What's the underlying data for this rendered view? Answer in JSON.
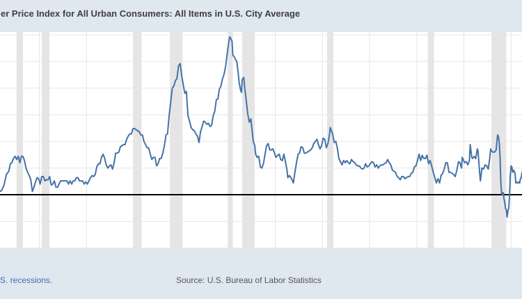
{
  "header": {
    "title": "er Price Index for All Urban Consumers: All Items in U.S. City Average",
    "bg_color": "#dfe7ef",
    "text_color": "#3f3f3f"
  },
  "footer": {
    "recessions_link": "S. recessions.",
    "link_color": "#3f6db5",
    "source": "Source: U.S. Bureau of Labor Statistics",
    "text_color": "#555555",
    "bg_color": "#dfe7ef"
  },
  "chart_data": {
    "type": "line",
    "title": "er Price Index for All Urban Consumers: All Items in U.S. City Average",
    "xlabel": "",
    "ylabel": "",
    "line_color": "#4572a7",
    "zero_line_color": "#000000",
    "grid_color": "#e6e6e6",
    "recession_band_color": "#e5e5e5",
    "tick_color": "#9aa4ae",
    "tick_label_color": "#555555",
    "xlim": [
      1955.82,
      2011.16
    ],
    "ylim": [
      -5.02,
      15.26
    ],
    "y_gridlines": [
      15,
      12.5,
      10,
      7.5,
      5,
      2.5,
      0,
      -2.5,
      -5
    ],
    "x_ticks": [
      1955,
      1960,
      1965,
      1970,
      1975,
      1980,
      1985,
      1990,
      1995,
      2000,
      2005,
      2010
    ],
    "recessions": [
      [
        1957.58,
        1958.25
      ],
      [
        1960.25,
        1961.08
      ],
      [
        1969.92,
        1970.83
      ],
      [
        1973.83,
        1975.17
      ],
      [
        1980.0,
        1980.5
      ],
      [
        1981.5,
        1982.83
      ],
      [
        1990.5,
        1991.17
      ],
      [
        2001.17,
        2001.83
      ],
      [
        2007.92,
        2009.5
      ]
    ],
    "points": [
      [
        1955.83,
        0.3
      ],
      [
        1956.0,
        0.4
      ],
      [
        1956.25,
        0.9
      ],
      [
        1956.5,
        1.9
      ],
      [
        1956.75,
        2.2
      ],
      [
        1956.92,
        2.9
      ],
      [
        1957.08,
        3.0
      ],
      [
        1957.25,
        3.4
      ],
      [
        1957.42,
        3.6
      ],
      [
        1957.58,
        3.3
      ],
      [
        1957.75,
        3.6
      ],
      [
        1957.92,
        3.0
      ],
      [
        1958.08,
        3.6
      ],
      [
        1958.25,
        3.6
      ],
      [
        1958.42,
        3.2
      ],
      [
        1958.58,
        2.5
      ],
      [
        1958.75,
        2.1
      ],
      [
        1958.92,
        1.8
      ],
      [
        1959.08,
        1.4
      ],
      [
        1959.25,
        0.3
      ],
      [
        1959.42,
        0.7
      ],
      [
        1959.58,
        1.2
      ],
      [
        1959.75,
        1.6
      ],
      [
        1959.92,
        1.5
      ],
      [
        1960.08,
        1.0
      ],
      [
        1960.25,
        1.7
      ],
      [
        1960.42,
        1.7
      ],
      [
        1960.58,
        1.3
      ],
      [
        1960.75,
        1.4
      ],
      [
        1960.92,
        1.4
      ],
      [
        1961.08,
        1.7
      ],
      [
        1961.25,
        0.9
      ],
      [
        1961.42,
        1.0
      ],
      [
        1961.58,
        1.3
      ],
      [
        1961.75,
        0.7
      ],
      [
        1961.92,
        0.7
      ],
      [
        1962.08,
        1.0
      ],
      [
        1962.25,
        1.3
      ],
      [
        1962.42,
        1.3
      ],
      [
        1962.58,
        1.3
      ],
      [
        1962.75,
        1.3
      ],
      [
        1962.92,
        1.3
      ],
      [
        1963.08,
        1.0
      ],
      [
        1963.25,
        1.3
      ],
      [
        1963.42,
        1.0
      ],
      [
        1963.58,
        1.3
      ],
      [
        1963.75,
        1.3
      ],
      [
        1963.92,
        1.6
      ],
      [
        1964.08,
        1.6
      ],
      [
        1964.25,
        1.3
      ],
      [
        1964.42,
        1.3
      ],
      [
        1964.58,
        1.3
      ],
      [
        1964.75,
        1.0
      ],
      [
        1964.92,
        1.2
      ],
      [
        1965.08,
        1.0
      ],
      [
        1965.25,
        1.3
      ],
      [
        1965.42,
        1.6
      ],
      [
        1965.58,
        1.8
      ],
      [
        1965.75,
        1.7
      ],
      [
        1965.92,
        1.9
      ],
      [
        1966.08,
        2.6
      ],
      [
        1966.25,
        2.9
      ],
      [
        1966.42,
        2.9
      ],
      [
        1966.58,
        3.5
      ],
      [
        1966.75,
        3.8
      ],
      [
        1966.92,
        3.4
      ],
      [
        1967.08,
        2.8
      ],
      [
        1967.25,
        2.5
      ],
      [
        1967.42,
        2.7
      ],
      [
        1967.58,
        2.8
      ],
      [
        1967.75,
        2.4
      ],
      [
        1967.92,
        3.0
      ],
      [
        1968.08,
        3.9
      ],
      [
        1968.25,
        3.9
      ],
      [
        1968.42,
        4.0
      ],
      [
        1968.58,
        4.5
      ],
      [
        1968.75,
        4.6
      ],
      [
        1968.92,
        4.7
      ],
      [
        1969.08,
        4.7
      ],
      [
        1969.25,
        5.2
      ],
      [
        1969.42,
        5.5
      ],
      [
        1969.58,
        5.7
      ],
      [
        1969.75,
        5.7
      ],
      [
        1969.92,
        6.2
      ],
      [
        1970.08,
        6.2
      ],
      [
        1970.25,
        6.1
      ],
      [
        1970.42,
        6.0
      ],
      [
        1970.58,
        5.9
      ],
      [
        1970.75,
        5.6
      ],
      [
        1970.92,
        5.6
      ],
      [
        1971.08,
        5.0
      ],
      [
        1971.25,
        4.7
      ],
      [
        1971.42,
        4.4
      ],
      [
        1971.58,
        4.4
      ],
      [
        1971.75,
        3.8
      ],
      [
        1971.92,
        3.3
      ],
      [
        1972.08,
        3.5
      ],
      [
        1972.25,
        3.5
      ],
      [
        1972.42,
        2.7
      ],
      [
        1972.58,
        2.9
      ],
      [
        1972.75,
        3.4
      ],
      [
        1972.92,
        3.4
      ],
      [
        1973.08,
        3.9
      ],
      [
        1973.25,
        4.6
      ],
      [
        1973.42,
        5.6
      ],
      [
        1973.58,
        5.7
      ],
      [
        1973.75,
        7.4
      ],
      [
        1973.92,
        8.7
      ],
      [
        1974.08,
        10.0
      ],
      [
        1974.25,
        10.2
      ],
      [
        1974.42,
        10.7
      ],
      [
        1974.58,
        10.9
      ],
      [
        1974.75,
        12.1
      ],
      [
        1974.92,
        12.3
      ],
      [
        1975.08,
        11.2
      ],
      [
        1975.25,
        10.3
      ],
      [
        1975.42,
        9.5
      ],
      [
        1975.58,
        9.7
      ],
      [
        1975.75,
        7.4
      ],
      [
        1975.92,
        6.9
      ],
      [
        1976.08,
        6.3
      ],
      [
        1976.25,
        6.1
      ],
      [
        1976.42,
        6.0
      ],
      [
        1976.58,
        5.7
      ],
      [
        1976.75,
        5.5
      ],
      [
        1976.92,
        4.9
      ],
      [
        1977.08,
        5.9
      ],
      [
        1977.25,
        6.4
      ],
      [
        1977.42,
        6.9
      ],
      [
        1977.58,
        6.8
      ],
      [
        1977.75,
        6.6
      ],
      [
        1977.92,
        6.7
      ],
      [
        1978.08,
        6.4
      ],
      [
        1978.25,
        6.5
      ],
      [
        1978.42,
        7.4
      ],
      [
        1978.58,
        7.8
      ],
      [
        1978.75,
        8.9
      ],
      [
        1978.92,
        9.0
      ],
      [
        1979.08,
        9.9
      ],
      [
        1979.25,
        10.2
      ],
      [
        1979.42,
        10.9
      ],
      [
        1979.58,
        11.3
      ],
      [
        1979.75,
        12.1
      ],
      [
        1979.92,
        13.3
      ],
      [
        1980.0,
        13.9
      ],
      [
        1980.17,
        14.8
      ],
      [
        1980.25,
        14.7
      ],
      [
        1980.42,
        14.4
      ],
      [
        1980.5,
        13.1
      ],
      [
        1980.67,
        12.9
      ],
      [
        1980.83,
        12.6
      ],
      [
        1980.92,
        12.5
      ],
      [
        1981.08,
        11.4
      ],
      [
        1981.17,
        10.5
      ],
      [
        1981.33,
        9.8
      ],
      [
        1981.42,
        9.6
      ],
      [
        1981.5,
        10.8
      ],
      [
        1981.67,
        11.0
      ],
      [
        1981.75,
        10.1
      ],
      [
        1981.92,
        8.9
      ],
      [
        1982.08,
        7.6
      ],
      [
        1982.25,
        6.8
      ],
      [
        1982.42,
        7.1
      ],
      [
        1982.5,
        6.4
      ],
      [
        1982.67,
        5.0
      ],
      [
        1982.83,
        4.6
      ],
      [
        1982.92,
        3.8
      ],
      [
        1983.08,
        3.5
      ],
      [
        1983.25,
        3.6
      ],
      [
        1983.42,
        2.6
      ],
      [
        1983.58,
        2.5
      ],
      [
        1983.75,
        2.9
      ],
      [
        1983.92,
        3.8
      ],
      [
        1984.08,
        4.6
      ],
      [
        1984.25,
        4.8
      ],
      [
        1984.42,
        4.2
      ],
      [
        1984.58,
        4.2
      ],
      [
        1984.75,
        4.3
      ],
      [
        1984.92,
        3.9
      ],
      [
        1985.08,
        3.5
      ],
      [
        1985.25,
        3.7
      ],
      [
        1985.42,
        3.8
      ],
      [
        1985.58,
        3.3
      ],
      [
        1985.75,
        3.2
      ],
      [
        1985.92,
        3.8
      ],
      [
        1986.08,
        3.1
      ],
      [
        1986.25,
        2.3
      ],
      [
        1986.33,
        1.6
      ],
      [
        1986.5,
        1.8
      ],
      [
        1986.67,
        1.6
      ],
      [
        1986.83,
        1.3
      ],
      [
        1986.92,
        1.1
      ],
      [
        1987.08,
        2.1
      ],
      [
        1987.25,
        3.0
      ],
      [
        1987.42,
        3.8
      ],
      [
        1987.58,
        3.9
      ],
      [
        1987.75,
        4.5
      ],
      [
        1987.92,
        4.4
      ],
      [
        1988.08,
        3.9
      ],
      [
        1988.25,
        3.9
      ],
      [
        1988.42,
        4.0
      ],
      [
        1988.58,
        4.1
      ],
      [
        1988.75,
        4.2
      ],
      [
        1988.92,
        4.4
      ],
      [
        1989.08,
        4.8
      ],
      [
        1989.25,
        5.0
      ],
      [
        1989.42,
        5.2
      ],
      [
        1989.58,
        4.7
      ],
      [
        1989.75,
        4.3
      ],
      [
        1989.92,
        4.6
      ],
      [
        1990.08,
        5.3
      ],
      [
        1990.25,
        5.2
      ],
      [
        1990.42,
        4.4
      ],
      [
        1990.58,
        4.8
      ],
      [
        1990.75,
        5.6
      ],
      [
        1990.83,
        6.3
      ],
      [
        1990.92,
        6.1
      ],
      [
        1991.08,
        5.7
      ],
      [
        1991.25,
        4.9
      ],
      [
        1991.42,
        5.0
      ],
      [
        1991.58,
        4.4
      ],
      [
        1991.75,
        3.4
      ],
      [
        1991.92,
        3.1
      ],
      [
        1992.08,
        2.8
      ],
      [
        1992.25,
        3.2
      ],
      [
        1992.42,
        3.0
      ],
      [
        1992.58,
        3.2
      ],
      [
        1992.75,
        3.0
      ],
      [
        1992.92,
        2.9
      ],
      [
        1993.08,
        3.3
      ],
      [
        1993.25,
        3.1
      ],
      [
        1993.42,
        3.0
      ],
      [
        1993.58,
        2.8
      ],
      [
        1993.75,
        2.7
      ],
      [
        1993.92,
        2.7
      ],
      [
        1994.08,
        2.5
      ],
      [
        1994.25,
        2.4
      ],
      [
        1994.42,
        2.5
      ],
      [
        1994.58,
        2.9
      ],
      [
        1994.75,
        2.6
      ],
      [
        1994.92,
        2.7
      ],
      [
        1995.08,
        2.9
      ],
      [
        1995.25,
        3.1
      ],
      [
        1995.42,
        3.0
      ],
      [
        1995.58,
        2.6
      ],
      [
        1995.75,
        2.8
      ],
      [
        1995.92,
        2.5
      ],
      [
        1996.08,
        2.7
      ],
      [
        1996.25,
        2.8
      ],
      [
        1996.42,
        2.8
      ],
      [
        1996.58,
        2.9
      ],
      [
        1996.75,
        3.0
      ],
      [
        1996.92,
        3.3
      ],
      [
        1997.08,
        3.0
      ],
      [
        1997.25,
        2.8
      ],
      [
        1997.42,
        2.3
      ],
      [
        1997.58,
        2.2
      ],
      [
        1997.75,
        2.1
      ],
      [
        1997.92,
        1.7
      ],
      [
        1998.08,
        1.6
      ],
      [
        1998.25,
        1.4
      ],
      [
        1998.42,
        1.7
      ],
      [
        1998.58,
        1.7
      ],
      [
        1998.75,
        1.5
      ],
      [
        1998.92,
        1.6
      ],
      [
        1999.08,
        1.7
      ],
      [
        1999.25,
        1.7
      ],
      [
        1999.42,
        2.0
      ],
      [
        1999.58,
        2.1
      ],
      [
        1999.75,
        2.6
      ],
      [
        1999.92,
        2.7
      ],
      [
        2000.08,
        3.2
      ],
      [
        2000.25,
        3.8
      ],
      [
        2000.42,
        3.2
      ],
      [
        2000.58,
        3.7
      ],
      [
        2000.75,
        3.4
      ],
      [
        2000.92,
        3.4
      ],
      [
        2001.08,
        3.7
      ],
      [
        2001.25,
        2.9
      ],
      [
        2001.42,
        3.2
      ],
      [
        2001.58,
        2.7
      ],
      [
        2001.75,
        2.1
      ],
      [
        2001.92,
        1.6
      ],
      [
        2002.08,
        1.1
      ],
      [
        2002.25,
        1.5
      ],
      [
        2002.42,
        1.1
      ],
      [
        2002.58,
        1.8
      ],
      [
        2002.75,
        2.0
      ],
      [
        2002.92,
        2.4
      ],
      [
        2003.08,
        3.0
      ],
      [
        2003.25,
        3.0
      ],
      [
        2003.42,
        2.1
      ],
      [
        2003.58,
        2.1
      ],
      [
        2003.75,
        2.0
      ],
      [
        2003.92,
        1.9
      ],
      [
        2004.08,
        1.7
      ],
      [
        2004.25,
        2.3
      ],
      [
        2004.42,
        3.1
      ],
      [
        2004.58,
        3.0
      ],
      [
        2004.75,
        2.5
      ],
      [
        2004.83,
        3.5
      ],
      [
        2004.92,
        3.3
      ],
      [
        2005.08,
        3.0
      ],
      [
        2005.25,
        3.1
      ],
      [
        2005.42,
        2.8
      ],
      [
        2005.58,
        3.2
      ],
      [
        2005.67,
        4.7
      ],
      [
        2005.83,
        3.5
      ],
      [
        2005.92,
        3.4
      ],
      [
        2006.08,
        3.6
      ],
      [
        2006.25,
        3.4
      ],
      [
        2006.42,
        4.3
      ],
      [
        2006.5,
        4.1
      ],
      [
        2006.67,
        2.1
      ],
      [
        2006.75,
        1.3
      ],
      [
        2006.92,
        2.5
      ],
      [
        2007.08,
        2.4
      ],
      [
        2007.25,
        2.8
      ],
      [
        2007.42,
        2.7
      ],
      [
        2007.58,
        2.4
      ],
      [
        2007.75,
        3.5
      ],
      [
        2007.83,
        4.3
      ],
      [
        2007.92,
        4.1
      ],
      [
        2008.08,
        4.0
      ],
      [
        2008.25,
        4.0
      ],
      [
        2008.42,
        4.2
      ],
      [
        2008.5,
        5.0
      ],
      [
        2008.58,
        5.6
      ],
      [
        2008.67,
        5.4
      ],
      [
        2008.75,
        4.9
      ],
      [
        2008.83,
        3.7
      ],
      [
        2008.92,
        1.1
      ],
      [
        2009.0,
        0.1
      ],
      [
        2009.08,
        0.0
      ],
      [
        2009.17,
        0.2
      ],
      [
        2009.25,
        -0.4
      ],
      [
        2009.33,
        -0.7
      ],
      [
        2009.42,
        -1.3
      ],
      [
        2009.5,
        -1.4
      ],
      [
        2009.58,
        -2.1
      ],
      [
        2009.67,
        -1.5
      ],
      [
        2009.75,
        -1.3
      ],
      [
        2009.83,
        -0.2
      ],
      [
        2009.92,
        1.8
      ],
      [
        2010.0,
        2.7
      ],
      [
        2010.08,
        2.6
      ],
      [
        2010.17,
        2.1
      ],
      [
        2010.25,
        2.3
      ],
      [
        2010.33,
        2.2
      ],
      [
        2010.42,
        2.0
      ],
      [
        2010.5,
        1.1
      ],
      [
        2010.58,
        1.2
      ],
      [
        2010.67,
        1.1
      ],
      [
        2010.75,
        1.1
      ],
      [
        2010.83,
        1.2
      ],
      [
        2010.92,
        1.1
      ],
      [
        2011.0,
        1.5
      ],
      [
        2011.08,
        1.6
      ],
      [
        2011.17,
        2.1
      ]
    ]
  }
}
